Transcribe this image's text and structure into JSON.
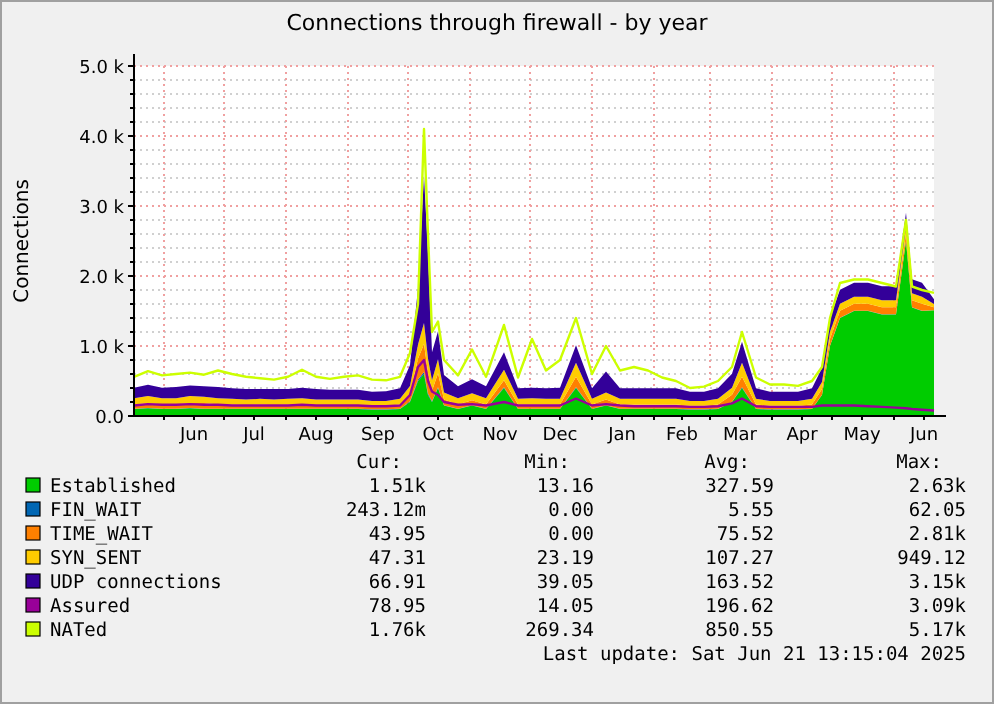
{
  "chart_data": {
    "type": "area",
    "title": "Connections through firewall - by year",
    "ylabel": "Connections",
    "stacked": true,
    "grid": true,
    "legend": "bottom",
    "xlim": [
      "2024-05-17",
      "2025-06-21"
    ],
    "xticks": [
      {
        "value": "2024-06-01",
        "label": null
      },
      {
        "value": "2024-06-16",
        "label": "Jun"
      },
      {
        "value": "2024-07-01",
        "label": null
      },
      {
        "value": "2024-07-16",
        "label": "Jul"
      },
      {
        "value": "2024-08-01",
        "label": null
      },
      {
        "value": "2024-08-16",
        "label": "Aug"
      },
      {
        "value": "2024-09-01",
        "label": null
      },
      {
        "value": "2024-09-16",
        "label": "Sep"
      },
      {
        "value": "2024-10-01",
        "label": null
      },
      {
        "value": "2024-10-16",
        "label": "Oct"
      },
      {
        "value": "2024-11-01",
        "label": null
      },
      {
        "value": "2024-11-16",
        "label": "Nov"
      },
      {
        "value": "2024-12-01",
        "label": null
      },
      {
        "value": "2024-12-16",
        "label": "Dec"
      },
      {
        "value": "2025-01-01",
        "label": null
      },
      {
        "value": "2025-01-16",
        "label": "Jan"
      },
      {
        "value": "2025-02-01",
        "label": null
      },
      {
        "value": "2025-02-15",
        "label": "Feb"
      },
      {
        "value": "2025-03-01",
        "label": null
      },
      {
        "value": "2025-03-16",
        "label": "Mar"
      },
      {
        "value": "2025-04-01",
        "label": null
      },
      {
        "value": "2025-04-16",
        "label": "Apr"
      },
      {
        "value": "2025-05-01",
        "label": null
      },
      {
        "value": "2025-05-16",
        "label": "May"
      },
      {
        "value": "2025-06-01",
        "label": null
      },
      {
        "value": "2025-06-16",
        "label": "Jun"
      }
    ],
    "ylim": [
      0,
      5000
    ],
    "yticks": [
      {
        "value": 0,
        "label": "0.0"
      },
      {
        "value": 200,
        "label": null
      },
      {
        "value": 400,
        "label": null
      },
      {
        "value": 600,
        "label": null
      },
      {
        "value": 800,
        "label": null
      },
      {
        "value": 1000,
        "label": "1.0 k"
      },
      {
        "value": 1200,
        "label": null
      },
      {
        "value": 1400,
        "label": null
      },
      {
        "value": 1600,
        "label": null
      },
      {
        "value": 1800,
        "label": null
      },
      {
        "value": 2000,
        "label": "2.0 k"
      },
      {
        "value": 2200,
        "label": null
      },
      {
        "value": 2400,
        "label": null
      },
      {
        "value": 2600,
        "label": null
      },
      {
        "value": 2800,
        "label": null
      },
      {
        "value": 3000,
        "label": "3.0 k"
      },
      {
        "value": 3200,
        "label": null
      },
      {
        "value": 3400,
        "label": null
      },
      {
        "value": 3600,
        "label": null
      },
      {
        "value": 3800,
        "label": null
      },
      {
        "value": 4000,
        "label": "4.0 k"
      },
      {
        "value": 4200,
        "label": null
      },
      {
        "value": 4400,
        "label": null
      },
      {
        "value": 4600,
        "label": null
      },
      {
        "value": 4800,
        "label": null
      },
      {
        "value": 5000,
        "label": "5.0 k"
      }
    ],
    "x": [
      "2024-05-17",
      "2024-05-24",
      "2024-05-31",
      "2024-06-07",
      "2024-06-14",
      "2024-06-21",
      "2024-06-28",
      "2024-07-05",
      "2024-07-12",
      "2024-07-19",
      "2024-07-26",
      "2024-08-02",
      "2024-08-09",
      "2024-08-16",
      "2024-08-23",
      "2024-08-30",
      "2024-09-06",
      "2024-09-13",
      "2024-09-20",
      "2024-09-27",
      "2024-10-02",
      "2024-10-06",
      "2024-10-09",
      "2024-10-11",
      "2024-10-13",
      "2024-10-16",
      "2024-10-19",
      "2024-10-26",
      "2024-11-02",
      "2024-11-09",
      "2024-11-18",
      "2024-11-25",
      "2024-12-02",
      "2024-12-09",
      "2024-12-16",
      "2024-12-24",
      "2025-01-01",
      "2025-01-08",
      "2025-01-15",
      "2025-01-22",
      "2025-01-29",
      "2025-02-05",
      "2025-02-12",
      "2025-02-19",
      "2025-02-26",
      "2025-03-05",
      "2025-03-12",
      "2025-03-17",
      "2025-03-24",
      "2025-03-31",
      "2025-04-07",
      "2025-04-14",
      "2025-04-21",
      "2025-04-26",
      "2025-04-30",
      "2025-05-05",
      "2025-05-12",
      "2025-05-19",
      "2025-05-26",
      "2025-06-02",
      "2025-06-07",
      "2025-06-10",
      "2025-06-15",
      "2025-06-21"
    ],
    "series": [
      {
        "name": "Established",
        "color": "#00cc00",
        "values": [
          100,
          110,
          100,
          100,
          110,
          100,
          100,
          100,
          100,
          100,
          100,
          100,
          100,
          100,
          100,
          100,
          100,
          90,
          90,
          100,
          200,
          500,
          600,
          300,
          200,
          400,
          150,
          100,
          150,
          100,
          400,
          100,
          100,
          100,
          100,
          400,
          100,
          150,
          100,
          100,
          100,
          100,
          100,
          90,
          90,
          100,
          200,
          400,
          100,
          90,
          90,
          90,
          100,
          300,
          1000,
          1400,
          1500,
          1500,
          1450,
          1450,
          2500,
          1550,
          1500,
          1510
        ]
      },
      {
        "name": "FIN_WAIT",
        "color": "#0066b3",
        "values": [
          5,
          5,
          5,
          5,
          5,
          5,
          5,
          5,
          5,
          5,
          5,
          5,
          5,
          5,
          5,
          5,
          5,
          5,
          5,
          5,
          10,
          20,
          30,
          20,
          10,
          10,
          5,
          5,
          5,
          5,
          10,
          5,
          5,
          5,
          5,
          10,
          5,
          5,
          5,
          5,
          5,
          5,
          5,
          5,
          5,
          5,
          5,
          10,
          5,
          5,
          5,
          5,
          5,
          5,
          5,
          5,
          5,
          5,
          5,
          5,
          5,
          5,
          5,
          0.24
        ]
      },
      {
        "name": "TIME_WAIT",
        "color": "#ff8000",
        "values": [
          60,
          70,
          60,
          60,
          70,
          80,
          60,
          60,
          50,
          60,
          50,
          60,
          60,
          50,
          50,
          50,
          50,
          50,
          50,
          60,
          100,
          300,
          400,
          300,
          150,
          200,
          80,
          60,
          70,
          60,
          100,
          60,
          60,
          60,
          60,
          150,
          60,
          80,
          60,
          60,
          60,
          60,
          60,
          50,
          50,
          60,
          100,
          150,
          60,
          50,
          50,
          50,
          60,
          80,
          100,
          100,
          100,
          100,
          100,
          100,
          100,
          100,
          100,
          44
        ]
      },
      {
        "name": "SYN_SENT",
        "color": "#ffcc00",
        "values": [
          90,
          100,
          90,
          90,
          100,
          90,
          90,
          80,
          80,
          80,
          80,
          80,
          90,
          80,
          80,
          80,
          80,
          70,
          70,
          80,
          120,
          200,
          300,
          200,
          150,
          200,
          100,
          90,
          100,
          90,
          150,
          80,
          90,
          80,
          80,
          200,
          80,
          100,
          80,
          80,
          80,
          80,
          80,
          70,
          70,
          80,
          100,
          200,
          80,
          70,
          70,
          70,
          80,
          100,
          100,
          100,
          100,
          100,
          100,
          100,
          100,
          100,
          100,
          47
        ]
      },
      {
        "name": "UDP connections",
        "color": "#330099",
        "values": [
          150,
          160,
          150,
          160,
          150,
          150,
          160,
          150,
          150,
          140,
          150,
          140,
          150,
          150,
          140,
          140,
          140,
          130,
          140,
          150,
          300,
          800,
          2100,
          1500,
          400,
          400,
          250,
          170,
          200,
          170,
          250,
          150,
          150,
          150,
          160,
          250,
          150,
          300,
          150,
          150,
          150,
          150,
          150,
          130,
          130,
          150,
          200,
          300,
          150,
          130,
          130,
          130,
          150,
          200,
          200,
          200,
          200,
          200,
          200,
          200,
          200,
          200,
          200,
          67
        ]
      },
      {
        "name": "Assured",
        "color": "#990099",
        "type": "line",
        "values": [
          150,
          170,
          160,
          160,
          170,
          160,
          160,
          150,
          150,
          150,
          150,
          150,
          160,
          150,
          150,
          150,
          150,
          140,
          140,
          150,
          300,
          700,
          800,
          500,
          350,
          300,
          200,
          160,
          170,
          150,
          200,
          150,
          150,
          150,
          150,
          250,
          150,
          170,
          150,
          140,
          140,
          140,
          140,
          130,
          130,
          140,
          180,
          250,
          140,
          130,
          130,
          130,
          130,
          150,
          150,
          150,
          150,
          140,
          130,
          120,
          110,
          100,
          90,
          79
        ]
      },
      {
        "name": "NATed",
        "color": "#ccff00",
        "type": "line",
        "values": [
          560,
          640,
          580,
          600,
          620,
          590,
          650,
          600,
          560,
          540,
          520,
          560,
          660,
          560,
          530,
          560,
          580,
          520,
          510,
          560,
          900,
          1600,
          4100,
          2600,
          1200,
          1350,
          800,
          580,
          950,
          560,
          1300,
          550,
          1100,
          650,
          800,
          1400,
          600,
          1000,
          650,
          700,
          650,
          550,
          500,
          400,
          420,
          500,
          700,
          1200,
          550,
          450,
          450,
          430,
          500,
          700,
          1400,
          1900,
          1950,
          1950,
          1900,
          1850,
          2800,
          1850,
          1800,
          1760
        ]
      }
    ],
    "annotations": [
      "Cur:",
      "Min:",
      "Avg:",
      "Max:",
      "1.51k",
      "13.16",
      "327.59",
      "2.63k",
      "243.12m",
      "0.00",
      "5.55",
      "62.05",
      "43.95",
      "0.00",
      "75.52",
      "2.81k",
      "47.31",
      "23.19",
      "107.27",
      "949.12",
      "66.91",
      "39.05",
      "163.52",
      "3.15k",
      "78.95",
      "14.05",
      "196.62",
      "3.09k",
      "1.76k",
      "269.34",
      "850.55",
      "5.17k",
      "Last update: Sat Jun 21 13:15:04 2025"
    ]
  }
}
